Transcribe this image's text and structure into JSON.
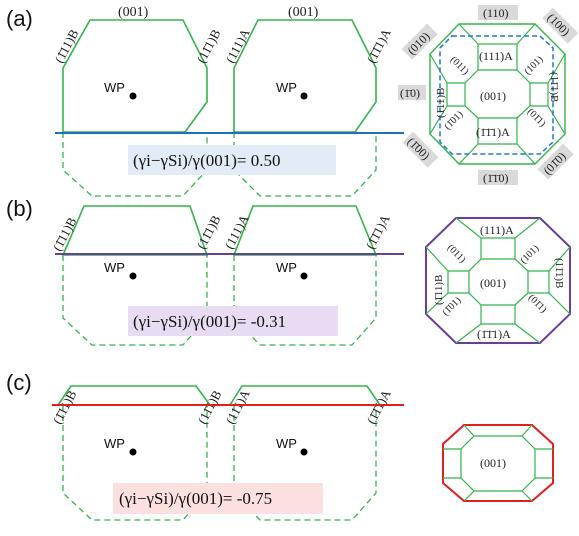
{
  "colors": {
    "facet": "#33b54a",
    "blue_line": "#1f6fbf",
    "purple_line": "#6a3d9a",
    "red_line": "#e02020",
    "blue_dash": "#1f78c8",
    "box_a": "#e2ecf7",
    "box_b": "#e8dcf3",
    "box_c": "#fbe0df",
    "grey_label_bg": "#d9d9d9"
  },
  "panels": [
    {
      "tag": "(a)",
      "equation": "(γi−γSi)/γ(001)= 0.50"
    },
    {
      "tag": "(b)",
      "equation": "(γi−γSi)/γ(001)= -0.31"
    },
    {
      "tag": "(c)",
      "equation": "(γi−γSi)/γ(001)= -0.75"
    }
  ],
  "shape_labels": {
    "top_001": "(001)",
    "left_b1": "(1̄11)B",
    "left_b2": "(11̄1)B",
    "right_a1": "(111)A",
    "right_a2": "(1̄1̄1)A",
    "wp": "WP"
  },
  "topview": {
    "center": "(001)",
    "top_a": "(111)A",
    "bottom_a": "(1̄1̄1)A",
    "left_b": "(1̄11)B",
    "right_b": "(11̄1)B",
    "f011": "(011)",
    "f101": "(101)",
    "f1b01": "(1̄01)",
    "f01b1": "(01̄1)",
    "g110": "(110)",
    "g100": "(100)",
    "g010": "(010)",
    "g1b0": "(1̄0)",
    "g1b00": "(1̄00)",
    "g01b0": "(01̄0)",
    "g1b1b0": "(1̄1̄0)"
  }
}
